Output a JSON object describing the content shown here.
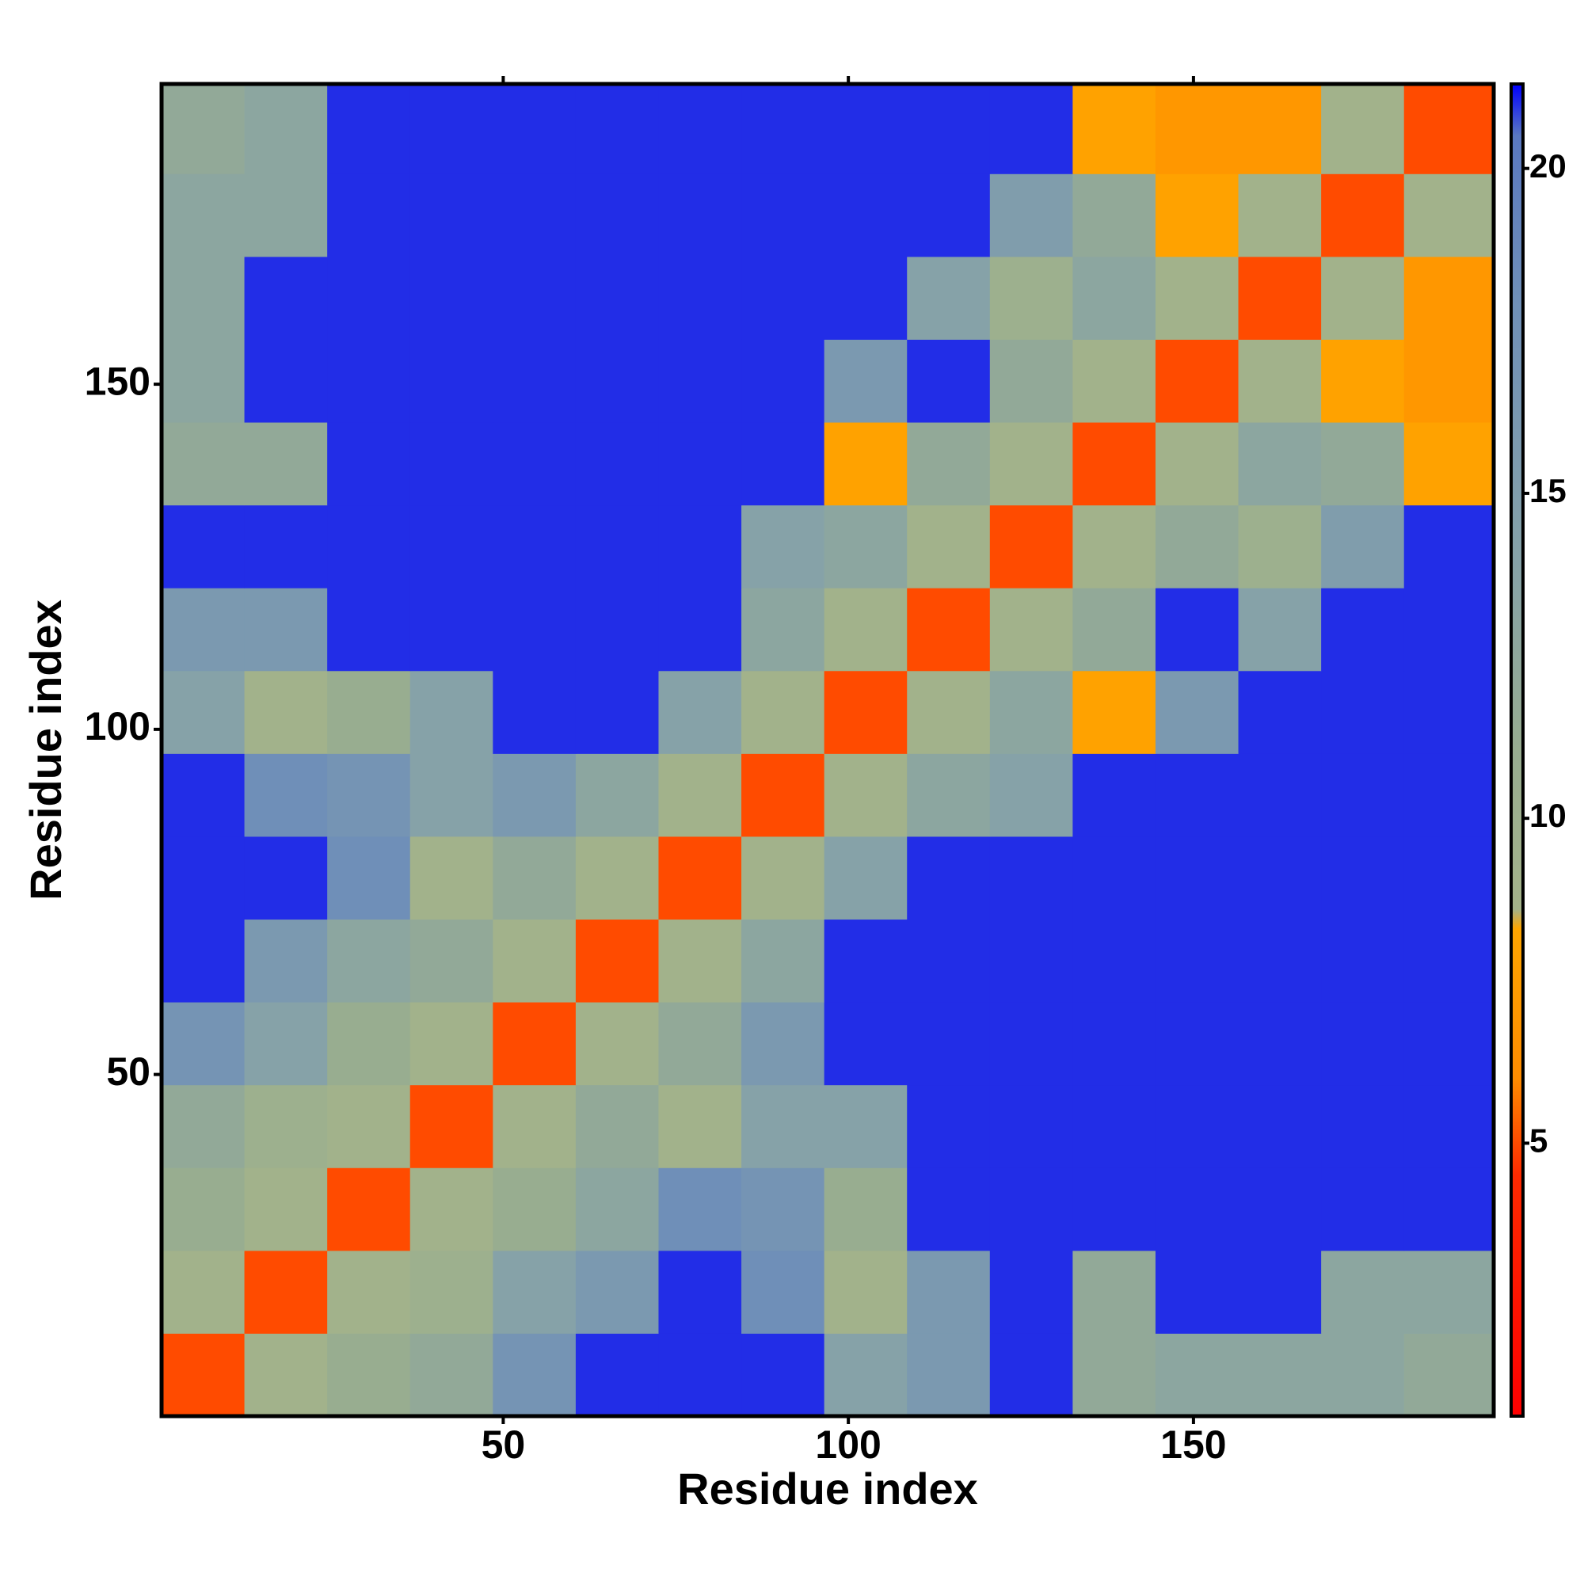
{
  "chart_data": {
    "type": "heatmap",
    "xlabel": "Residue index",
    "ylabel": "Residue index",
    "xbins": [
      0.5,
      12.5,
      24.5,
      36.5,
      48.5,
      60.5,
      72.5,
      84.5,
      96.5,
      108.5,
      120.5,
      132.5,
      144.5,
      156.5,
      168.5,
      180.5,
      193.5
    ],
    "ybins": [
      0.5,
      12.5,
      24.5,
      36.5,
      48.5,
      60.5,
      72.5,
      84.5,
      96.5,
      108.5,
      120.5,
      132.5,
      144.5,
      156.5,
      168.5,
      180.5,
      193.5
    ],
    "values": [
      [
        5,
        9,
        11,
        12,
        17,
        21,
        21,
        21,
        14,
        16,
        21,
        12,
        13,
        13,
        13,
        12
      ],
      [
        9,
        5,
        9,
        10,
        14,
        16,
        21,
        18,
        9,
        16,
        21,
        12,
        21,
        21,
        13,
        13
      ],
      [
        11,
        9,
        5,
        9,
        11,
        13,
        18,
        17,
        11,
        21,
        21,
        21,
        21,
        21,
        21,
        21
      ],
      [
        12,
        10,
        9,
        5,
        9,
        12,
        9,
        14,
        14,
        21,
        21,
        21,
        21,
        21,
        21,
        21
      ],
      [
        17,
        14,
        11,
        9,
        5,
        9,
        12,
        16,
        21,
        21,
        21,
        21,
        21,
        21,
        21,
        21
      ],
      [
        21,
        16,
        13,
        12,
        9,
        5,
        9,
        13,
        21,
        21,
        21,
        21,
        21,
        21,
        21,
        21
      ],
      [
        21,
        21,
        18,
        9,
        12,
        9,
        5,
        9,
        14,
        21,
        21,
        21,
        21,
        21,
        21,
        21
      ],
      [
        21,
        18,
        17,
        14,
        16,
        13,
        9,
        5,
        9,
        13,
        14,
        21,
        21,
        21,
        21,
        21
      ],
      [
        14,
        9,
        11,
        14,
        21,
        21,
        14,
        9,
        5,
        9,
        13,
        8,
        16,
        21,
        21,
        21
      ],
      [
        16,
        16,
        21,
        21,
        21,
        21,
        21,
        13,
        9,
        5,
        9,
        12,
        21,
        14,
        21,
        21
      ],
      [
        21,
        21,
        21,
        21,
        21,
        21,
        21,
        14,
        13,
        9,
        5,
        9,
        12,
        10,
        15,
        21
      ],
      [
        12,
        12,
        21,
        21,
        21,
        21,
        21,
        21,
        8,
        12,
        9,
        5,
        9,
        13,
        12,
        8
      ],
      [
        13,
        21,
        21,
        21,
        21,
        21,
        21,
        21,
        16,
        21,
        12,
        9,
        5,
        9,
        8,
        7
      ],
      [
        13,
        21,
        21,
        21,
        21,
        21,
        21,
        21,
        21,
        14,
        10,
        13,
        9,
        5,
        9,
        7
      ],
      [
        13,
        13,
        21,
        21,
        21,
        21,
        21,
        21,
        21,
        21,
        15,
        12,
        8,
        9,
        5,
        9
      ],
      [
        12,
        13,
        21,
        21,
        21,
        21,
        21,
        21,
        21,
        21,
        21,
        8,
        7,
        7,
        9,
        5
      ]
    ],
    "xlim": [
      0.5,
      193.5
    ],
    "xticks": [
      50,
      100,
      150
    ],
    "ylim": [
      0.5,
      193.5
    ],
    "yticks": [
      50,
      100,
      150
    ],
    "clim": [
      0.8,
      21.3
    ],
    "cticks": [
      5,
      10,
      15,
      20
    ],
    "colorscale": [
      [
        0.8,
        "#ff0000"
      ],
      [
        4.5,
        "#ff2a00"
      ],
      [
        6,
        "#ff8c00"
      ],
      [
        8.3,
        "#ffa500"
      ],
      [
        8.6,
        "#a4b38a"
      ],
      [
        11,
        "#98ad90"
      ],
      [
        14,
        "#86a2a8"
      ],
      [
        18,
        "#6f8fb8"
      ],
      [
        20.5,
        "#5a78c0"
      ],
      [
        21.3,
        "#0000ff"
      ]
    ]
  }
}
